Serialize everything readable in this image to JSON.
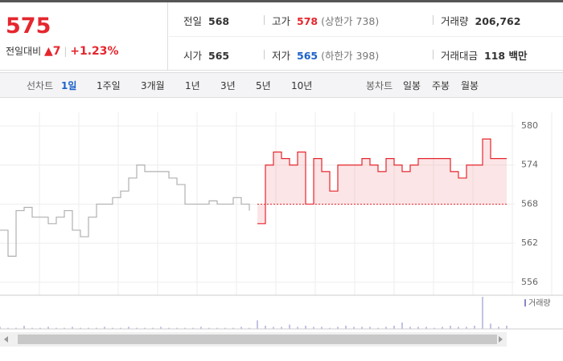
{
  "header": {
    "price": "575",
    "change_label": "전일대비",
    "change": "7",
    "change_rate": "+1.23%",
    "stats": [
      [
        {
          "label": "전일",
          "value": "568"
        },
        {
          "label": "고가",
          "value": "578",
          "extra": "(상한가 738)"
        },
        {
          "label": "거래량",
          "value": "206,762"
        }
      ],
      [
        {
          "label": "시가",
          "value": "565"
        },
        {
          "label": "저가",
          "value": "565",
          "extra": "(하한가 398)"
        },
        {
          "label": "거래대금",
          "value": "118 백만"
        }
      ]
    ]
  },
  "tabs": {
    "line_label": "선차트",
    "line": [
      "1일",
      "1주일",
      "3개월",
      "1년",
      "3년",
      "5년",
      "10년"
    ],
    "candle_label": "봉차트",
    "candle": [
      "일봉",
      "주봉",
      "월봉"
    ]
  },
  "chart_data": {
    "type": "line",
    "baseline": 568,
    "x": [
      0,
      1,
      2,
      3,
      4,
      5,
      6,
      7,
      8,
      9,
      10,
      11,
      12,
      13,
      14,
      15,
      16,
      17,
      18,
      19,
      20,
      21,
      22,
      23,
      24,
      25,
      26,
      27,
      28,
      29,
      30,
      31,
      32,
      33,
      34,
      35,
      36,
      37,
      38,
      39,
      40,
      41,
      42,
      43,
      44,
      45,
      46,
      47,
      48,
      49,
      50,
      51,
      52,
      53,
      54,
      55,
      56,
      57,
      58,
      59,
      60,
      61,
      62,
      63
    ],
    "xlim": [
      0,
      63
    ],
    "ylim": [
      555,
      580
    ],
    "yticks": [
      556,
      562,
      568,
      574,
      580
    ],
    "series": [
      {
        "color": "#b0b0b0",
        "values": [
          564,
          560,
          567,
          567.5,
          566,
          566,
          565,
          566,
          567,
          564,
          563,
          566,
          568,
          568,
          569,
          570,
          572,
          574,
          573,
          573,
          573,
          572,
          571,
          568,
          568,
          568,
          568.5,
          568,
          568,
          569,
          568,
          567,
          null,
          null,
          null,
          null,
          null,
          null,
          null,
          null,
          null,
          null,
          null,
          null,
          null,
          null,
          null,
          null,
          null,
          null,
          null,
          null,
          null,
          null,
          null,
          null,
          null,
          null,
          null,
          null,
          null,
          null,
          null,
          null
        ]
      },
      {
        "color": "#e5262e",
        "values": [
          null,
          null,
          null,
          null,
          null,
          null,
          null,
          null,
          null,
          null,
          null,
          null,
          null,
          null,
          null,
          null,
          null,
          null,
          null,
          null,
          null,
          null,
          null,
          null,
          null,
          null,
          null,
          null,
          null,
          null,
          null,
          null,
          565,
          574,
          576,
          575,
          574,
          576,
          568,
          575,
          573,
          570,
          574,
          574,
          574,
          575,
          574,
          573,
          575,
          574,
          573,
          574,
          575,
          575,
          575,
          575,
          573,
          572,
          574,
          574,
          578,
          575,
          575,
          575
        ]
      }
    ],
    "volume": {
      "name": "거래량",
      "color": "#8a86c8",
      "values": [
        2,
        1,
        1,
        3,
        1,
        1,
        2,
        1,
        1,
        2,
        1,
        1,
        1,
        2,
        1,
        1,
        2,
        1,
        1,
        1,
        2,
        1,
        1,
        1,
        1,
        2,
        1,
        1,
        1,
        1,
        2,
        1,
        8,
        3,
        2,
        2,
        4,
        2,
        3,
        2,
        2,
        1,
        2,
        3,
        2,
        2,
        2,
        1,
        2,
        3,
        6,
        2,
        2,
        2,
        1,
        2,
        3,
        2,
        2,
        3,
        30,
        5,
        2,
        3
      ]
    }
  }
}
